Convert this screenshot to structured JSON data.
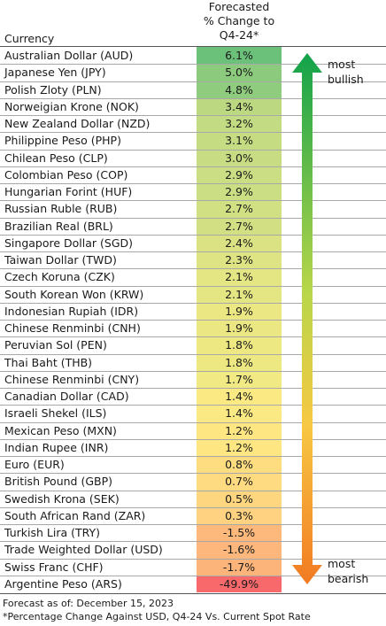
{
  "header": {
    "currency_label": "Currency",
    "change_label_lines": [
      "Forecasted",
      "% Change to",
      "Q4-24*"
    ]
  },
  "arrow": {
    "top_label_lines": [
      "most",
      "bullish"
    ],
    "bottom_label_lines": [
      "most",
      "bearish"
    ]
  },
  "footnotes": {
    "line1": "Forecast as of: December 15, 2023",
    "line2": "*Percentage Change Against USD, Q4-24 Vs. Current Spot Rate"
  },
  "chart_data": {
    "type": "table",
    "columns": [
      "Currency",
      "Forecasted % Change to Q4-24*"
    ],
    "categories": [
      "Australian Dollar (AUD)",
      "Japanese Yen (JPY)",
      "Polish Zloty (PLN)",
      "Norweigian Krone (NOK)",
      "New Zealand Dollar (NZD)",
      "Philippine Peso (PHP)",
      "Chilean Peso (CLP)",
      "Colombian Peso (COP)",
      "Hungarian Forint (HUF)",
      "Russian Ruble (RUB)",
      "Brazilian Real (BRL)",
      "Singapore Dollar (SGD)",
      "Taiwan Dollar (TWD)",
      "Czech Koruna (CZK)",
      "South Korean Won (KRW)",
      "Indonesian Rupiah (IDR)",
      "Chinese Renminbi (CNH)",
      "Peruvian Sol (PEN)",
      "Thai Baht (THB)",
      "Chinese Renminbi (CNY)",
      "Canadian Dollar (CAD)",
      "Israeli Shekel (ILS)",
      "Mexican Peso (MXN)",
      "Indian Rupee (INR)",
      "Euro (EUR)",
      "British Pound (GBP)",
      "Swedish Krona (SEK)",
      "South African Rand (ZAR)",
      "Turkish Lira (TRY)",
      "Trade Weighted Dollar (USD)",
      "Swiss Franc (CHF)",
      "Argentine Peso (ARS)"
    ],
    "values": [
      6.1,
      5.0,
      4.8,
      3.4,
      3.2,
      3.1,
      3.0,
      2.9,
      2.9,
      2.7,
      2.7,
      2.4,
      2.3,
      2.1,
      2.1,
      1.9,
      1.9,
      1.8,
      1.8,
      1.7,
      1.4,
      1.4,
      1.2,
      1.2,
      0.8,
      0.7,
      0.5,
      0.3,
      -1.5,
      -1.6,
      -1.7,
      -49.9
    ],
    "value_labels": [
      "6.1%",
      "5.0%",
      "4.8%",
      "3.4%",
      "3.2%",
      "3.1%",
      "3.0%",
      "2.9%",
      "2.9%",
      "2.7%",
      "2.7%",
      "2.4%",
      "2.3%",
      "2.1%",
      "2.1%",
      "1.9%",
      "1.9%",
      "1.8%",
      "1.8%",
      "1.7%",
      "1.4%",
      "1.4%",
      "1.2%",
      "1.2%",
      "0.8%",
      "0.7%",
      "0.5%",
      "0.3%",
      "-1.5%",
      "-1.6%",
      "-1.7%",
      "-49.9%"
    ],
    "colors": [
      "#6cc17a",
      "#8ccb7d",
      "#8fcc7e",
      "#bcd982",
      "#c3db82",
      "#c5dc82",
      "#c8dd83",
      "#cbde83",
      "#cbde83",
      "#d1e083",
      "#d2e083",
      "#dbe283",
      "#dee383",
      "#e4e583",
      "#e4e583",
      "#ebe783",
      "#ebe783",
      "#eee883",
      "#eee883",
      "#f1e984",
      "#fbea84",
      "#fbea84",
      "#fee683",
      "#fee683",
      "#fedd81",
      "#fedb81",
      "#fed680",
      "#fed280",
      "#fdb97c",
      "#fdb67b",
      "#fcb47b",
      "#f8696b"
    ]
  }
}
